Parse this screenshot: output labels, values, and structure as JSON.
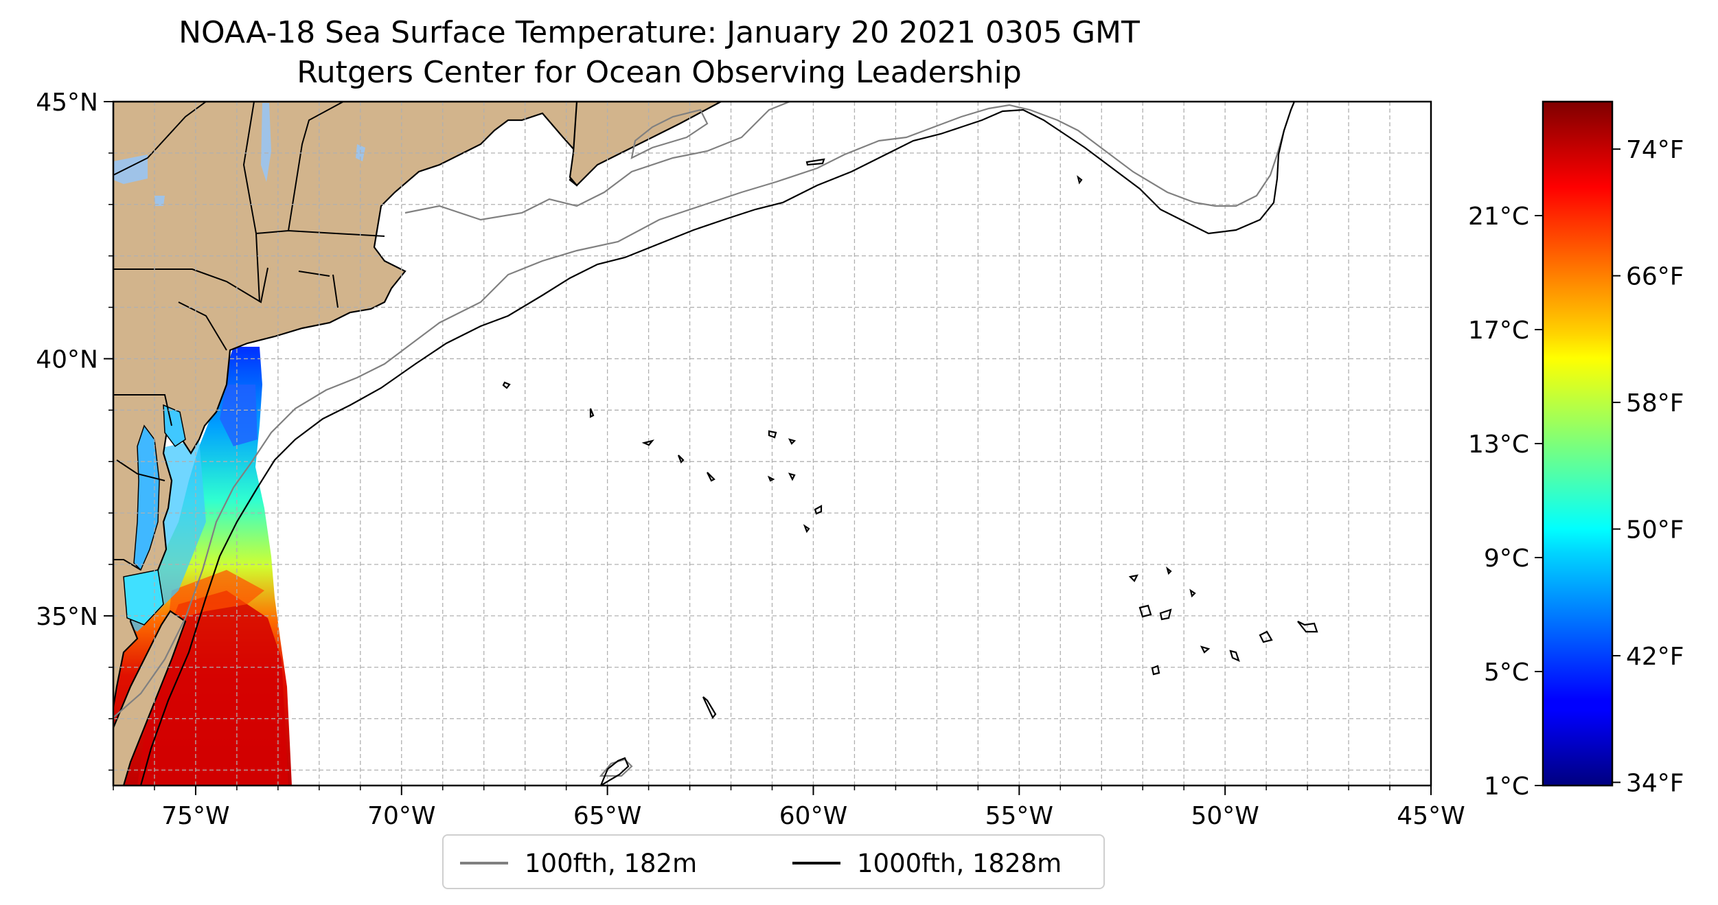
{
  "title": {
    "line1": "NOAA-18 Sea Surface Temperature: January 20 2021 0305 GMT",
    "line2": "Rutgers Center for Ocean Observing Leadership"
  },
  "map": {
    "lon_range": [
      -77,
      -45
    ],
    "lat_range": [
      31.7,
      45
    ],
    "x_ticks": [
      {
        "lon": -75,
        "label": "75°W"
      },
      {
        "lon": -70,
        "label": "70°W"
      },
      {
        "lon": -65,
        "label": "65°W"
      },
      {
        "lon": -60,
        "label": "60°W"
      },
      {
        "lon": -55,
        "label": "55°W"
      },
      {
        "lon": -50,
        "label": "50°W"
      },
      {
        "lon": -45,
        "label": "45°W"
      }
    ],
    "y_ticks": [
      {
        "lat": 45,
        "label": "45°N"
      },
      {
        "lat": 40,
        "label": "40°N"
      },
      {
        "lat": 35,
        "label": "35°N"
      }
    ],
    "gridlines": true,
    "grid_spacing_deg": 1,
    "land_color": "#d2b48c",
    "lake_color": "#9fc3e8"
  },
  "colorbar": {
    "colormap": "jet",
    "fahrenheit_labels": [
      "74°F",
      "66°F",
      "58°F",
      "50°F",
      "42°F",
      "34°F"
    ],
    "fahrenheit_values": [
      74,
      66,
      58,
      50,
      42,
      34
    ],
    "celsius_labels": [
      "21°C",
      "17°C",
      "13°C",
      "9°C",
      "5°C",
      "1°C"
    ],
    "celsius_values": [
      21,
      17,
      13,
      9,
      5,
      1
    ],
    "range_f": [
      33.8,
      77
    ]
  },
  "legend": {
    "items": [
      {
        "label": "100fth, 182m",
        "color": "#808080"
      },
      {
        "label": "1000fth, 1828m",
        "color": "#000000"
      }
    ],
    "placement": "bottom-center"
  }
}
